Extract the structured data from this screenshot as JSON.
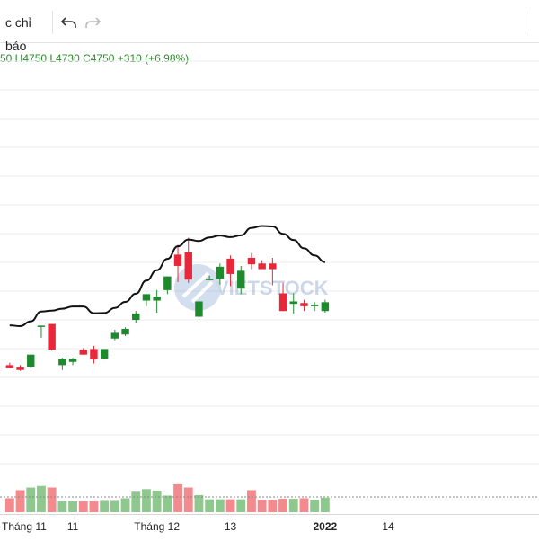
{
  "toolbar": {
    "indicators_label": "c chỉ báo",
    "undo_icon": "undo-icon",
    "redo_icon": "redo-icon"
  },
  "legend": {
    "ohlc_text": "50  H4750  L4730  C4750  +310 (+6.98%)"
  },
  "watermark": {
    "text": "VIETSTOCK"
  },
  "colors": {
    "up": "#1e8a2e",
    "down": "#e8283a",
    "vol_up": "#8fc88f",
    "vol_down": "#f28a8e",
    "ma": "#111111",
    "grid": "#eeeeee"
  },
  "chart_data": {
    "type": "candlestick",
    "y_range": [
      1,
      128
    ],
    "vol_range": [
      0,
      100
    ],
    "x_axis_labels": [
      {
        "text": "Tháng 11",
        "index": 0,
        "bold": false
      },
      {
        "text": "11",
        "index": 6,
        "bold": false
      },
      {
        "text": "Tháng 12",
        "index": 14,
        "bold": false
      },
      {
        "text": "13",
        "index": 21,
        "bold": false
      },
      {
        "text": "2022",
        "index": 30,
        "bold": true
      },
      {
        "text": "14",
        "index": 36,
        "bold": false
      }
    ],
    "candles": [
      {
        "o": 21.6,
        "h": 22.5,
        "l": 20.7,
        "c": 20.4,
        "v": 26
      },
      {
        "o": 20.7,
        "h": 21.6,
        "l": 19.5,
        "c": 19.8,
        "v": 41
      },
      {
        "o": 21.0,
        "h": 25.5,
        "l": 20.4,
        "c": 25.5,
        "v": 46
      },
      {
        "o": 36.3,
        "h": 36.3,
        "l": 31.8,
        "c": 36.3,
        "v": 49
      },
      {
        "o": 36.9,
        "h": 36.9,
        "l": 27.0,
        "c": 27.3,
        "v": 46
      },
      {
        "o": 21.6,
        "h": 24.3,
        "l": 19.8,
        "c": 24.0,
        "v": 20
      },
      {
        "o": 22.8,
        "h": 24.3,
        "l": 21.6,
        "c": 24.0,
        "v": 20
      },
      {
        "o": 27.3,
        "h": 27.9,
        "l": 26.1,
        "c": 25.5,
        "v": 20
      },
      {
        "o": 27.6,
        "h": 28.8,
        "l": 22.2,
        "c": 23.7,
        "v": 20
      },
      {
        "o": 24.0,
        "h": 27.3,
        "l": 23.7,
        "c": 27.6,
        "v": 21
      },
      {
        "o": 31.5,
        "h": 34.8,
        "l": 30.9,
        "c": 33.6,
        "v": 21
      },
      {
        "o": 33.0,
        "h": 35.7,
        "l": 32.4,
        "c": 35.1,
        "v": 26
      },
      {
        "o": 38.4,
        "h": 41.7,
        "l": 37.2,
        "c": 40.8,
        "v": 38
      },
      {
        "o": 45.6,
        "h": 48.0,
        "l": 43.5,
        "c": 48.0,
        "v": 43
      },
      {
        "o": 45.6,
        "h": 49.5,
        "l": 41.1,
        "c": 47.1,
        "v": 40
      },
      {
        "o": 49.5,
        "h": 54.3,
        "l": 48.0,
        "c": 54.6,
        "v": 31
      },
      {
        "o": 62.7,
        "h": 66.3,
        "l": 52.5,
        "c": 58.5,
        "v": 52
      },
      {
        "o": 63.6,
        "h": 69.0,
        "l": 52.2,
        "c": 53.4,
        "v": 46
      },
      {
        "o": 39.6,
        "h": 44.7,
        "l": 39.0,
        "c": 45.3,
        "v": 32
      },
      {
        "o": 53.4,
        "h": 54.9,
        "l": 53.1,
        "c": 53.7,
        "v": 24
      },
      {
        "o": 53.7,
        "h": 59.4,
        "l": 51.6,
        "c": 58.2,
        "v": 24
      },
      {
        "o": 61.2,
        "h": 62.4,
        "l": 51.0,
        "c": 55.5,
        "v": 24
      },
      {
        "o": 50.1,
        "h": 58.5,
        "l": 48.0,
        "c": 56.7,
        "v": 24
      },
      {
        "o": 61.5,
        "h": 63.3,
        "l": 57.3,
        "c": 59.1,
        "v": 41
      },
      {
        "o": 59.4,
        "h": 60.6,
        "l": 57.3,
        "c": 57.3,
        "v": 23
      },
      {
        "o": 59.4,
        "h": 61.5,
        "l": 51.3,
        "c": 57.3,
        "v": 23
      },
      {
        "o": 48.3,
        "h": 52.2,
        "l": 41.7,
        "c": 41.7,
        "v": 25
      },
      {
        "o": 44.4,
        "h": 48.3,
        "l": 40.8,
        "c": 45.3,
        "v": 25
      },
      {
        "o": 44.7,
        "h": 45.9,
        "l": 41.7,
        "c": 43.5,
        "v": 26
      },
      {
        "o": 43.5,
        "h": 45.0,
        "l": 41.7,
        "c": 44.1,
        "v": 23
      },
      {
        "o": 41.7,
        "h": 45.9,
        "l": 41.1,
        "c": 45.0,
        "v": 27
      }
    ]
  }
}
